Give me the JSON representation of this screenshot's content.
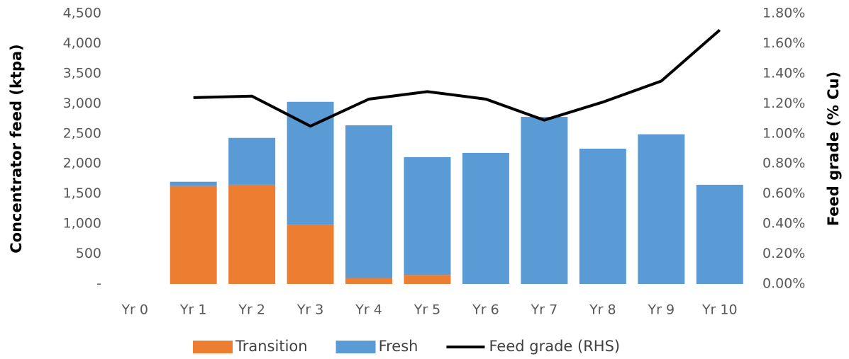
{
  "chart_data": {
    "type": "bar",
    "stacked": true,
    "categories": [
      "Yr 0",
      "Yr 1",
      "Yr 2",
      "Yr 3",
      "Yr 4",
      "Yr 5",
      "Yr 6",
      "Yr 7",
      "Yr 8",
      "Yr 9",
      "Yr 10"
    ],
    "y_label": "Concentrator feed (ktpa)",
    "y2_label": "Feed grade (% Cu)",
    "series": [
      {
        "name": "Transition",
        "color": "#ED7D31",
        "type": "bar",
        "values": [
          0,
          1630,
          1650,
          980,
          100,
          150,
          0,
          0,
          0,
          0,
          0
        ]
      },
      {
        "name": "Fresh",
        "color": "#5B9BD5",
        "type": "bar",
        "values": [
          0,
          70,
          780,
          2050,
          2540,
          1960,
          2180,
          2780,
          2250,
          2490,
          1650
        ]
      },
      {
        "name": "Feed grade (RHS)",
        "color": "#000000",
        "type": "line",
        "axis": "y2",
        "values": [
          null,
          1.24,
          1.25,
          1.05,
          1.23,
          1.28,
          1.23,
          1.09,
          1.21,
          1.35,
          1.69
        ]
      }
    ],
    "ylim": [
      0,
      4500
    ],
    "yticks": [
      {
        "value": 0,
        "label": "-"
      },
      {
        "value": 500,
        "label": "500"
      },
      {
        "value": 1000,
        "label": "1,000"
      },
      {
        "value": 1500,
        "label": "1,500"
      },
      {
        "value": 2000,
        "label": "2,000"
      },
      {
        "value": 2500,
        "label": "2,500"
      },
      {
        "value": 3000,
        "label": "3,000"
      },
      {
        "value": 3500,
        "label": "3,500"
      },
      {
        "value": 4000,
        "label": "4,000"
      },
      {
        "value": 4500,
        "label": "4,500"
      }
    ],
    "y2lim": [
      0,
      1.8
    ],
    "y2ticks": [
      {
        "value": 0,
        "label": "0.00%"
      },
      {
        "value": 0.2,
        "label": "0.20%"
      },
      {
        "value": 0.4,
        "label": "0.40%"
      },
      {
        "value": 0.6,
        "label": "0.60%"
      },
      {
        "value": 0.8,
        "label": "0.80%"
      },
      {
        "value": 1.0,
        "label": "1.00%"
      },
      {
        "value": 1.2,
        "label": "1.20%"
      },
      {
        "value": 1.4,
        "label": "1.40%"
      },
      {
        "value": 1.6,
        "label": "1.60%"
      },
      {
        "value": 1.8,
        "label": "1.80%"
      }
    ],
    "legend": "bottom"
  }
}
